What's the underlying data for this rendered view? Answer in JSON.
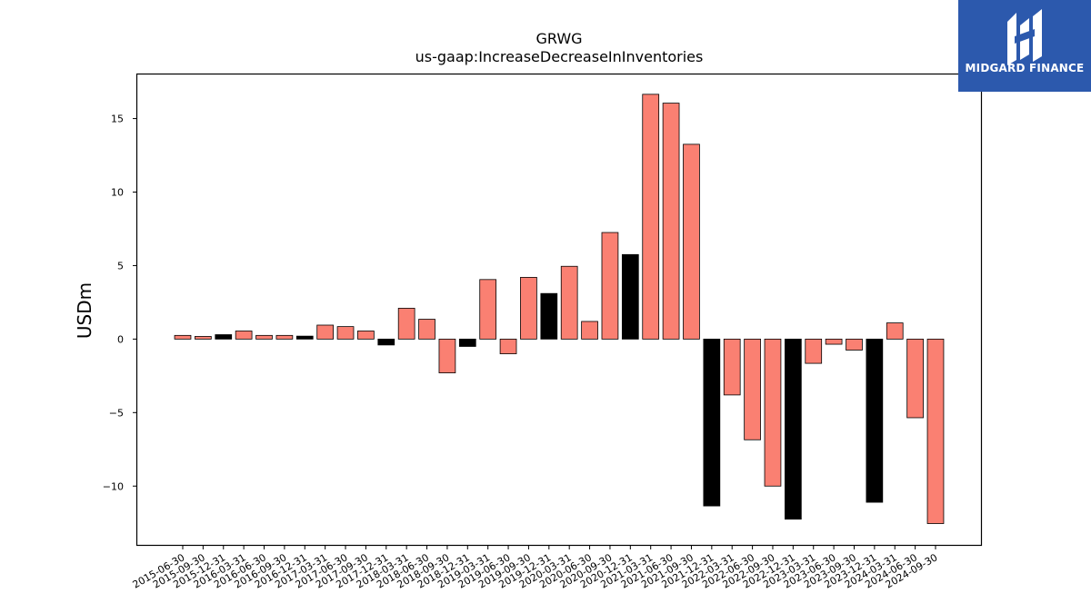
{
  "chart_data": {
    "type": "bar",
    "title": "GRWG",
    "subtitle": "us-gaap:IncreaseDecreaseInInventories",
    "xlabel": "",
    "ylabel": "USDm",
    "ylim": [
      -14.0,
      18.0
    ],
    "yticks": [
      -10,
      -5,
      0,
      5,
      10,
      15
    ],
    "ytick_labels": [
      "−10",
      "−5",
      "0",
      "5",
      "10",
      "15"
    ],
    "grid": false,
    "colors": {
      "default": "#fa8072",
      "highlight": "#000000",
      "edge": "#000000"
    },
    "categories": [
      "2015-06-30",
      "2015-09-30",
      "2015-12-31",
      "2016-03-31",
      "2016-06-30",
      "2016-09-30",
      "2016-12-31",
      "2017-03-31",
      "2017-06-30",
      "2017-09-30",
      "2017-12-31",
      "2018-03-31",
      "2018-06-30",
      "2018-09-30",
      "2018-12-31",
      "2019-03-31",
      "2019-06-30",
      "2019-09-30",
      "2019-12-31",
      "2020-03-31",
      "2020-06-30",
      "2020-09-30",
      "2020-12-31",
      "2021-03-31",
      "2021-06-30",
      "2021-09-30",
      "2021-12-31",
      "2022-03-31",
      "2022-06-30",
      "2022-09-30",
      "2022-12-31",
      "2023-03-31",
      "2023-06-30",
      "2023-09-30",
      "2023-12-31",
      "2024-03-31",
      "2024-06-30",
      "2024-09-30"
    ],
    "values": [
      0.25,
      0.18,
      0.3,
      0.55,
      0.25,
      0.25,
      0.2,
      0.95,
      0.85,
      0.55,
      -0.4,
      2.1,
      1.35,
      -2.3,
      -0.5,
      4.05,
      -1.0,
      4.2,
      3.1,
      4.95,
      1.2,
      7.25,
      5.75,
      16.65,
      16.05,
      13.25,
      -11.35,
      -3.8,
      -6.85,
      -10.0,
      -12.25,
      -1.65,
      -0.35,
      -0.75,
      -11.1,
      1.1,
      -5.35,
      -12.55
    ],
    "highlight": [
      false,
      false,
      true,
      false,
      false,
      false,
      true,
      false,
      false,
      false,
      true,
      false,
      false,
      false,
      true,
      false,
      false,
      false,
      true,
      false,
      false,
      false,
      true,
      false,
      false,
      false,
      true,
      false,
      false,
      false,
      true,
      false,
      false,
      false,
      true,
      false,
      false,
      false
    ]
  },
  "logo": {
    "text": "MIDGARD FINANCE",
    "icon": "midgard-logo-icon"
  }
}
